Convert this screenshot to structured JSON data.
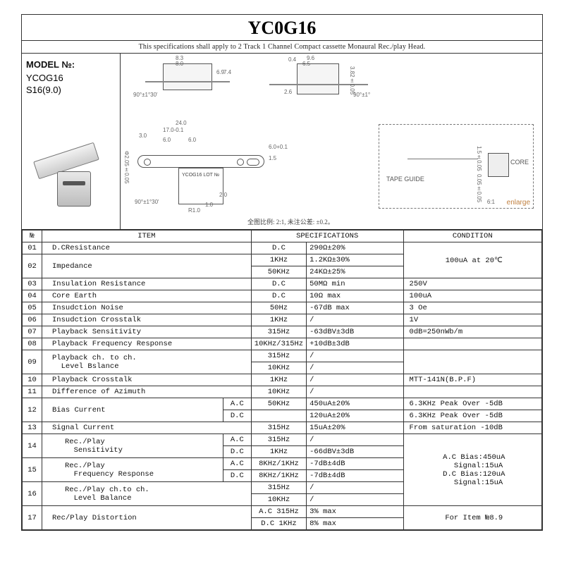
{
  "header": {
    "title": "YC0G16",
    "subtitle": "This specifications shall apply to 2 Track 1 Channel Compact cassette Monaural Rec./play Head."
  },
  "model": {
    "label": "MODEL №:",
    "value1": "YCOG16",
    "value2": "S16(9.0)"
  },
  "drawing": {
    "dims": {
      "a_w1": "8.3",
      "a_w2": "8.0",
      "a_h1": "6.9",
      "a_h2": "7.4",
      "b_w1": "9.6",
      "b_w2": "6.5",
      "b_t1": "0.4",
      "b_side": "3.82±0.05",
      "b_h": "2.6",
      "b_ang": "90°±1°",
      "c_len": "24.0",
      "c_l2": "17.0-0.1",
      "c_l3": "3.0",
      "c_l4": "6.0",
      "c_l5": "6.0",
      "c_hole": "Φ2.05±0.05",
      "c_h": "6.0+0.1",
      "c_h2": "1.5",
      "c_ang": "90°±1°30'",
      "c_pin": "1.0",
      "c_r": "R1.0",
      "c_pitch": "2.0",
      "head_label": "YCOG16\nLOT №",
      "detail_tape": "TAPE GUIDE",
      "detail_core": "CORE",
      "detail_d1": "1.5±0.05",
      "detail_d2": "0.05±0.05",
      "detail_ratio": "6:1",
      "enlarge": "enlarge"
    },
    "scale_note": "全图比例: 2:1,  未注公差: ±0.2。"
  },
  "table": {
    "headers": {
      "no": "№",
      "item": "ITEM",
      "spec": "SPECIFICATIONS",
      "cond": "CONDITION"
    },
    "rows": [
      {
        "no": "01",
        "item": "D.CResistance",
        "sub": "D.C",
        "val": "290Ω±20%",
        "cond": "100uA at 20℃",
        "cond_rowspan": 3
      },
      {
        "no": "02",
        "item": "Impedance",
        "item_rowspan": 2,
        "sub": "1KHz",
        "val": "1.2KΩ±30%"
      },
      {
        "sub": "50KHz",
        "val": "24KΩ±25%"
      },
      {
        "no": "03",
        "item": "Insulation Resistance",
        "sub": "D.C",
        "val": "50MΩ min",
        "cond": "250V"
      },
      {
        "no": "04",
        "item": "Core Earth",
        "sub": "D.C",
        "val": "10Ω max",
        "cond": "100uA"
      },
      {
        "no": "05",
        "item": "Insudction Noise",
        "sub": "50Hz",
        "val": "-67dB max",
        "cond": "3 Oe"
      },
      {
        "no": "06",
        "item": "Insudction Crosstalk",
        "sub": "1KHz",
        "val": "/",
        "cond": "1V"
      },
      {
        "no": "07",
        "item": "Playback Sensitivity",
        "sub": "315Hz",
        "val": "-63dBV±3dB",
        "cond": "0dB=250nWb/m"
      },
      {
        "no": "08",
        "item": "Playback Frequency Response",
        "sub": "10KHz/315Hz",
        "val": "+10dB±3dB",
        "cond": ""
      },
      {
        "no": "09",
        "item": "Playback ch. to ch.\n  Level Bslance",
        "item_rowspan": 2,
        "sub": "315Hz",
        "val": "/",
        "cond": "",
        "cond_rowspan": 2
      },
      {
        "sub": "10KHz",
        "val": "/"
      },
      {
        "no": "10",
        "item": "Playback Crosstalk",
        "sub": "1KHz",
        "val": "/",
        "cond": "MTT-141N(B.P.F)"
      },
      {
        "no": "11",
        "item": "Difference of Azimuth",
        "sub": "10KHz",
        "val": "/",
        "cond": ""
      },
      {
        "no": "12",
        "item": "Bias Current",
        "item_rowspan": 2,
        "sub2": "A.C",
        "sub": "50KHz",
        "val": "450uA±20%",
        "cond": "6.3KHz Peak Over -5dB"
      },
      {
        "sub2": "D.C",
        "sub": "",
        "val": "120uA±20%",
        "cond": "6.3KHz Peak Over -5dB"
      },
      {
        "no": "13",
        "item": "Signal Current",
        "sub": "315Hz",
        "val": "15uA±20%",
        "cond": "From saturation -10dB"
      },
      {
        "no": "14",
        "item": "Rec./Play\n  Sensitivity",
        "item_rowspan": 2,
        "item_sub": true,
        "sub2": "A.C",
        "sub": "315Hz",
        "val": "/",
        "cond": "A.C Bias:450uA\n  Signal:15uA\nD.C Bias:120uA\n  Signal:15uA",
        "cond_rowspan": 6
      },
      {
        "sub2": "D.C",
        "sub": "1KHz",
        "val": "-66dBV±3dB"
      },
      {
        "no": "15",
        "item": "Rec./Play\n  Frequency Response",
        "item_rowspan": 2,
        "item_sub": true,
        "sub2": "A.C",
        "sub": "8KHz/1KHz",
        "val": "-7dB±4dB"
      },
      {
        "sub2": "D.C",
        "sub": "8KHz/1KHz",
        "val": "-7dB±4dB"
      },
      {
        "no": "16",
        "item": "Rec./Play ch.to ch.\n  Level Balance",
        "item_rowspan": 2,
        "item_sub": true,
        "sub": "315Hz",
        "val": "/"
      },
      {
        "sub": "10KHz",
        "val": "/"
      },
      {
        "no": "17",
        "item": "Rec/Play Distortion",
        "item_rowspan": 2,
        "sub": "A.C 315Hz",
        "val": "3% max",
        "cond": "For Item №8.9",
        "cond_rowspan": 2
      },
      {
        "sub": "D.C 1KHz",
        "val": "8% max"
      }
    ]
  },
  "colors": {
    "border": "#333333",
    "text": "#111111",
    "dim": "#666666",
    "accent": "#c08040",
    "bg": "#ffffff"
  }
}
